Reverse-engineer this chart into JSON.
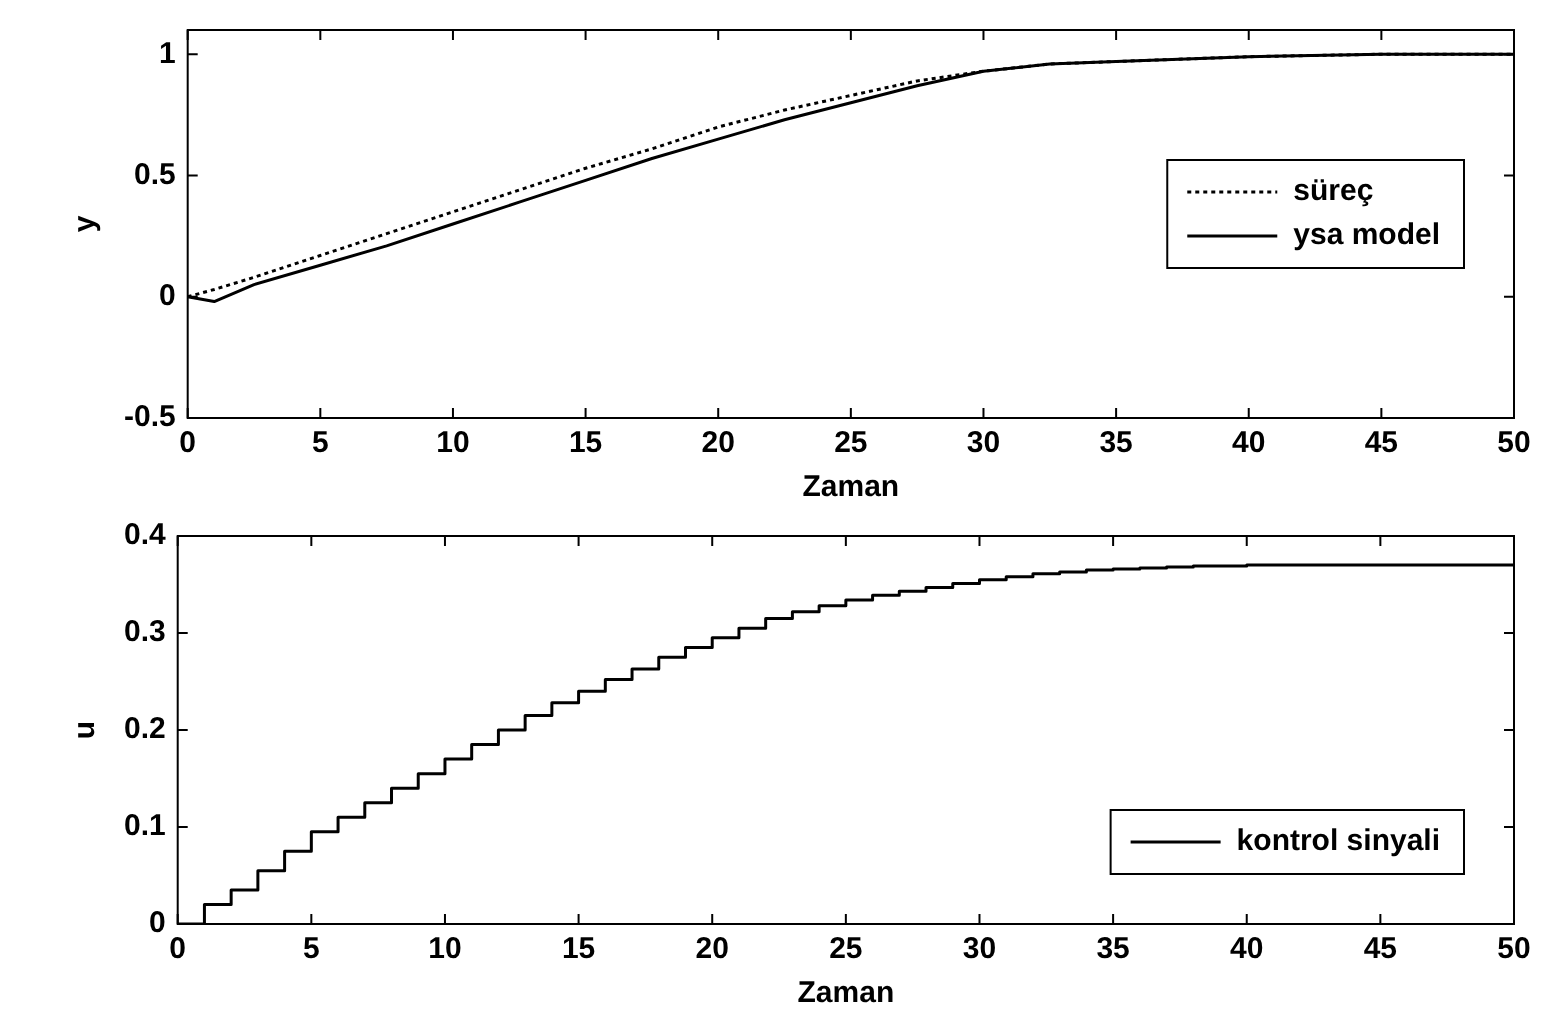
{
  "chart_data": [
    {
      "type": "line",
      "xlabel": "Zaman",
      "ylabel": "y",
      "xlim": [
        0,
        50
      ],
      "xticks": [
        0,
        5,
        10,
        15,
        20,
        25,
        30,
        35,
        40,
        45,
        50
      ],
      "ylim": [
        -0.5,
        1.1
      ],
      "yticks": [
        -0.5,
        0,
        0.5,
        1
      ],
      "grid": false,
      "legend": "right",
      "series": [
        {
          "name": "süreç",
          "color": "#000000",
          "line_style": "dotted",
          "x": [
            0,
            1,
            2.5,
            5,
            7.5,
            10,
            12.5,
            15,
            17.5,
            20,
            22.5,
            25,
            27.5,
            30,
            32.5,
            35,
            40,
            45,
            50
          ],
          "values": [
            0,
            0.03,
            0.08,
            0.17,
            0.26,
            0.35,
            0.44,
            0.53,
            0.61,
            0.7,
            0.77,
            0.83,
            0.89,
            0.93,
            0.96,
            0.97,
            0.99,
            1,
            1
          ]
        },
        {
          "name": "ysa model",
          "color": "#000000",
          "line_style": "solid",
          "x": [
            0,
            1,
            2.5,
            5,
            7.5,
            10,
            12.5,
            15,
            17.5,
            20,
            22.5,
            25,
            27.5,
            30,
            32.5,
            35,
            40,
            45,
            50
          ],
          "values": [
            0,
            -0.02,
            0.05,
            0.13,
            0.21,
            0.3,
            0.39,
            0.48,
            0.57,
            0.65,
            0.73,
            0.8,
            0.87,
            0.93,
            0.96,
            0.97,
            0.99,
            1,
            1
          ]
        }
      ]
    },
    {
      "type": "step",
      "xlabel": "Zaman",
      "ylabel": "u",
      "xlim": [
        0,
        50
      ],
      "xticks": [
        0,
        5,
        10,
        15,
        20,
        25,
        30,
        35,
        40,
        45,
        50
      ],
      "ylim": [
        0,
        0.4
      ],
      "yticks": [
        0,
        0.1,
        0.2,
        0.3,
        0.4
      ],
      "grid": false,
      "legend": "bottom right",
      "series": [
        {
          "name": "kontrol sinyali",
          "color": "#000000",
          "line_style": "solid",
          "x": [
            0,
            1,
            2,
            3,
            4,
            5,
            6,
            7,
            8,
            9,
            10,
            11,
            12,
            13,
            14,
            15,
            16,
            17,
            18,
            19,
            20,
            21,
            22,
            23,
            24,
            25,
            26,
            27,
            28,
            29,
            30,
            31,
            32,
            33,
            34,
            35,
            36,
            37,
            38,
            39,
            40,
            41,
            42,
            43,
            44,
            45,
            46,
            47,
            48,
            49,
            50
          ],
          "values": [
            0,
            0.02,
            0.035,
            0.055,
            0.075,
            0.095,
            0.11,
            0.125,
            0.14,
            0.155,
            0.17,
            0.185,
            0.2,
            0.215,
            0.228,
            0.24,
            0.252,
            0.263,
            0.275,
            0.285,
            0.295,
            0.305,
            0.315,
            0.322,
            0.328,
            0.334,
            0.339,
            0.343,
            0.347,
            0.351,
            0.355,
            0.358,
            0.361,
            0.363,
            0.365,
            0.366,
            0.367,
            0.368,
            0.369,
            0.369,
            0.37,
            0.37,
            0.37,
            0.37,
            0.37,
            0.37,
            0.37,
            0.37,
            0.37,
            0.37,
            0.37
          ]
        }
      ]
    }
  ]
}
